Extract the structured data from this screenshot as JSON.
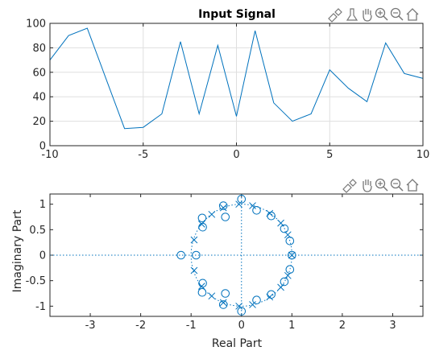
{
  "charts": [
    {
      "type": "line",
      "title": "Input Signal",
      "xlabel": "",
      "ylabel": "",
      "xlim": [
        -10,
        10
      ],
      "ylim": [
        0,
        100
      ],
      "xticks": [
        -10,
        -5,
        0,
        5,
        10
      ],
      "yticks": [
        0,
        20,
        40,
        60,
        80,
        100
      ],
      "grid": true,
      "color": "#0072BD",
      "x": [
        -10,
        -9,
        -8,
        -7,
        -6,
        -5,
        -4,
        -3,
        -2,
        -1,
        0,
        1,
        2,
        3,
        4,
        5,
        6,
        7,
        8,
        9,
        10
      ],
      "y": [
        70,
        90,
        96,
        55,
        14,
        15,
        26,
        85,
        26,
        82,
        24,
        94,
        35,
        20,
        26,
        62,
        47,
        36,
        84,
        59,
        55
      ]
    },
    {
      "type": "scatter",
      "title": "",
      "xlabel": "Real Part",
      "ylabel": "Imaginary Part",
      "xlim": [
        -3.8,
        3.6
      ],
      "ylim": [
        -1.2,
        1.2
      ],
      "xticks": [
        -3,
        -2,
        -1,
        0,
        1,
        2,
        3
      ],
      "yticks": [
        -1,
        -0.5,
        0,
        0.5,
        1
      ],
      "grid": false,
      "color": "#0072BD",
      "unit_circle": true,
      "zeros": [
        [
          1.0,
          0.0
        ],
        [
          -1.2,
          0.0
        ],
        [
          -0.9,
          0.0
        ],
        [
          0.0,
          1.1
        ],
        [
          0.0,
          -1.1
        ],
        [
          0.96,
          0.28
        ],
        [
          0.96,
          -0.28
        ],
        [
          0.85,
          0.52
        ],
        [
          0.85,
          -0.52
        ],
        [
          0.59,
          0.77
        ],
        [
          0.59,
          -0.77
        ],
        [
          0.3,
          0.88
        ],
        [
          0.3,
          -0.88
        ],
        [
          -0.36,
          0.97
        ],
        [
          -0.36,
          -0.97
        ],
        [
          -0.32,
          0.75
        ],
        [
          -0.32,
          -0.75
        ],
        [
          -0.78,
          0.73
        ],
        [
          -0.78,
          -0.73
        ],
        [
          -0.77,
          0.55
        ],
        [
          -0.77,
          -0.55
        ]
      ],
      "poles": [
        [
          1.0,
          0.0
        ],
        [
          0.92,
          0.4
        ],
        [
          0.92,
          -0.4
        ],
        [
          0.78,
          0.63
        ],
        [
          0.78,
          -0.63
        ],
        [
          0.56,
          0.82
        ],
        [
          0.56,
          -0.82
        ],
        [
          0.22,
          0.97
        ],
        [
          0.22,
          -0.97
        ],
        [
          -0.36,
          0.93
        ],
        [
          -0.36,
          -0.93
        ],
        [
          -0.59,
          0.8
        ],
        [
          -0.59,
          -0.8
        ],
        [
          -0.79,
          0.61
        ],
        [
          -0.79,
          -0.61
        ],
        [
          -0.94,
          0.3
        ],
        [
          -0.94,
          -0.3
        ],
        [
          -0.05,
          1.0
        ],
        [
          -0.05,
          -1.0
        ]
      ]
    }
  ],
  "toolbar_icons": [
    "brush-icon",
    "data-tips-icon",
    "pan-hand-icon",
    "zoom-in-icon",
    "zoom-out-icon",
    "home-icon"
  ]
}
